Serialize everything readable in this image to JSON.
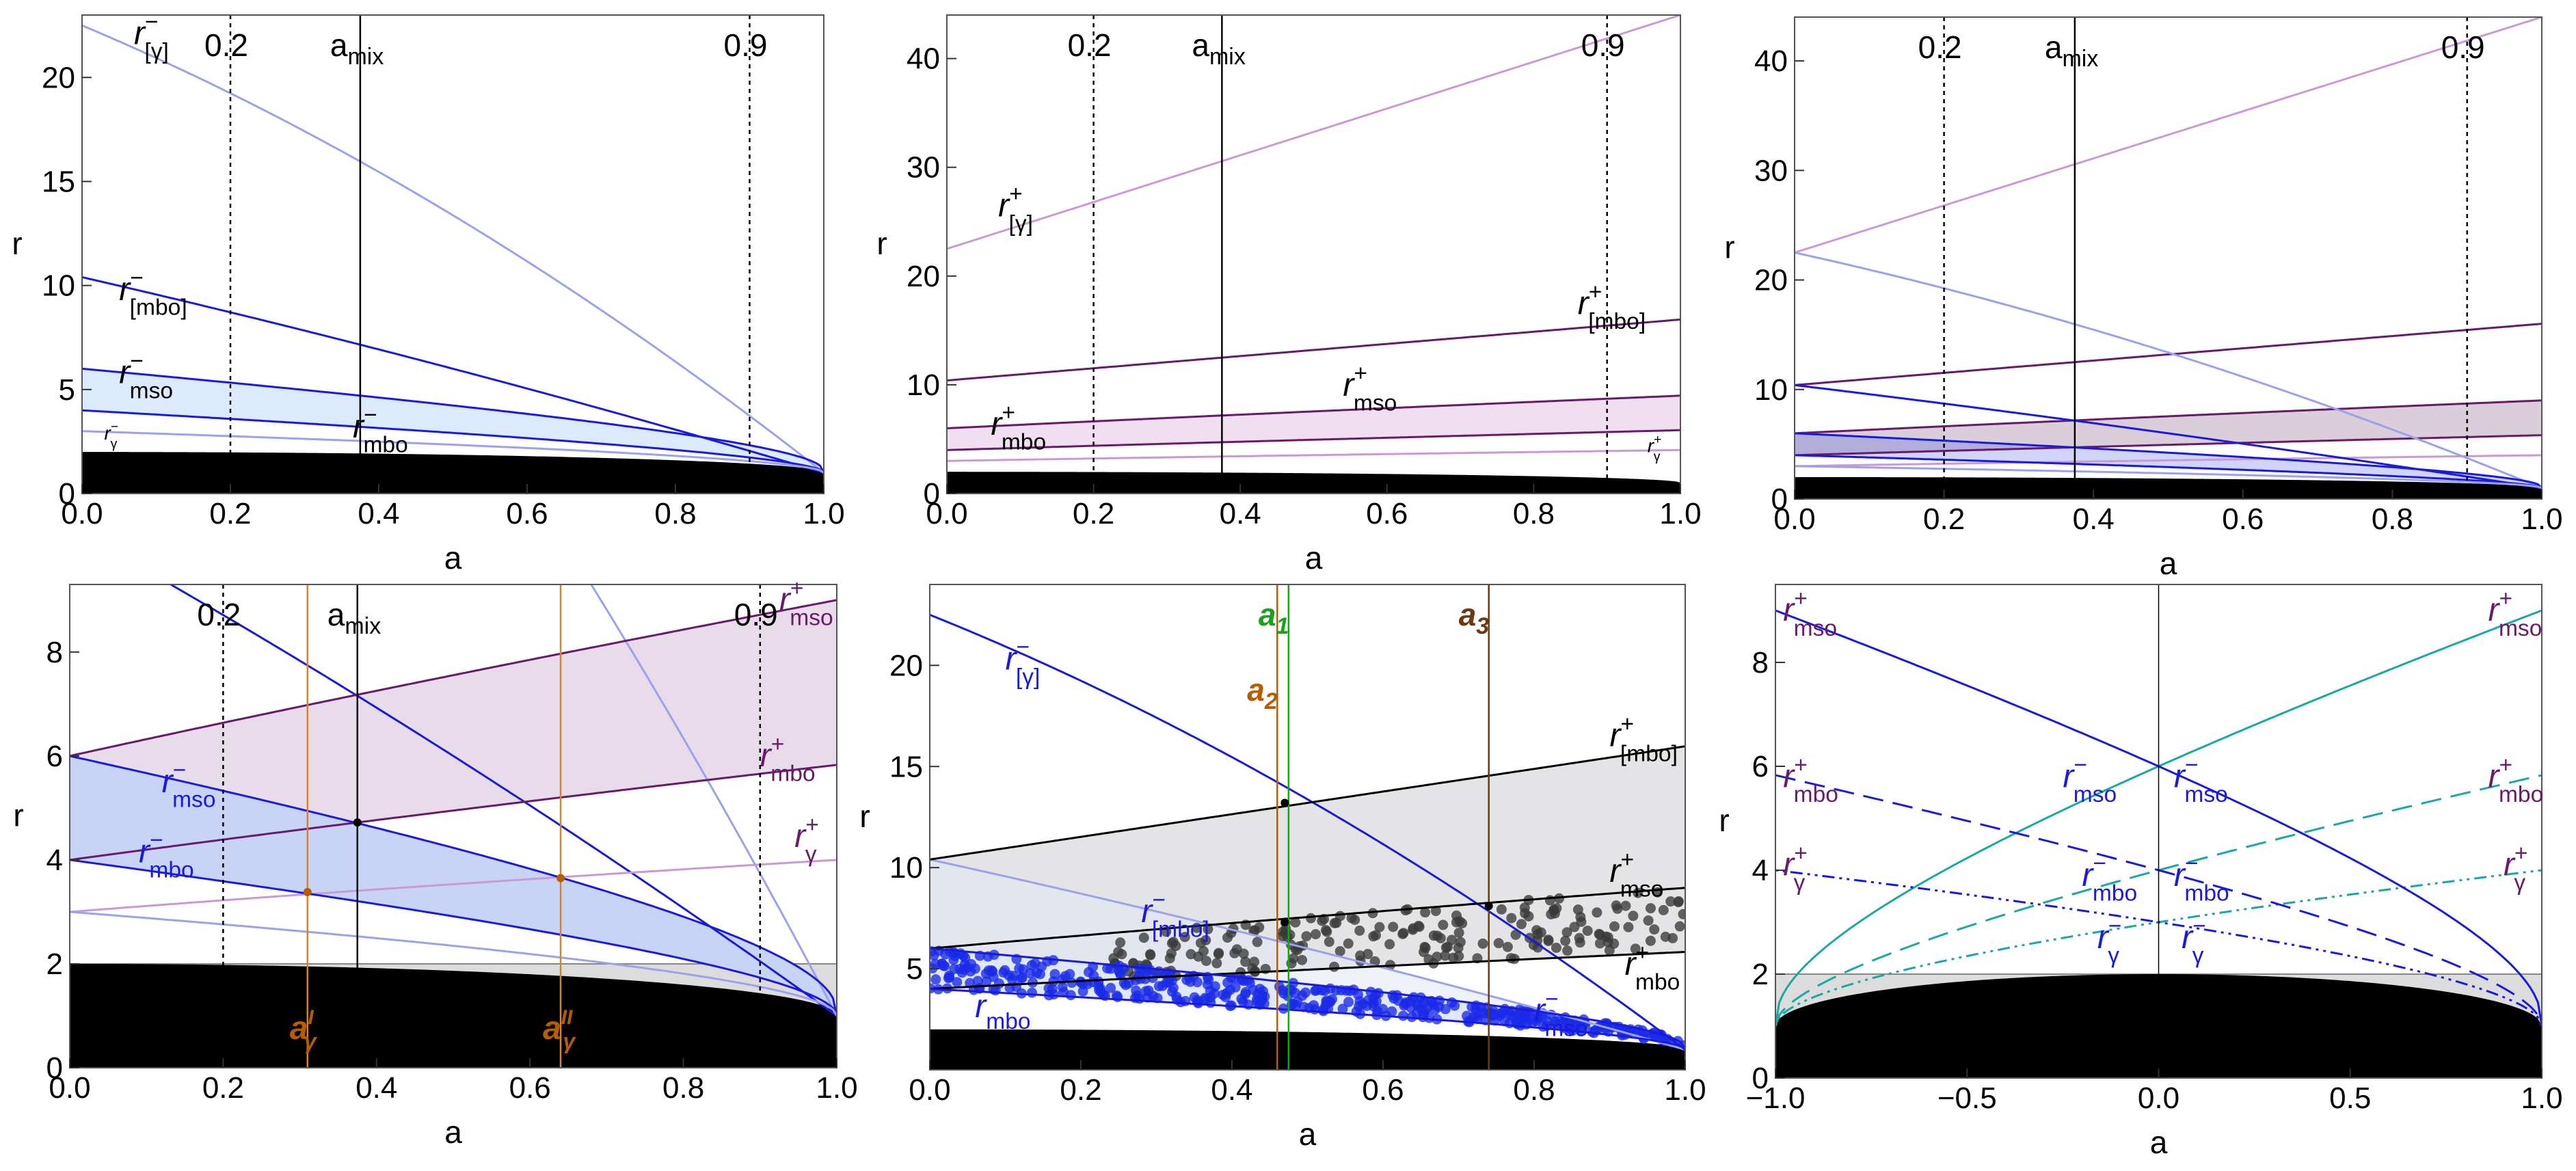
{
  "figure": {
    "panel_count": 6,
    "background": "#ffffff"
  },
  "colors": {
    "blue": "#1a1adf",
    "lightblue": "#9aa2ee",
    "purple": "#6a1a6a",
    "lightpurple": "#c99ad3",
    "orange": "#b85c00",
    "brown": "#6b3a12",
    "green": "#1aa31a",
    "teal": "#1aa9a2",
    "black": "#000000"
  },
  "chart_data": [
    {
      "type": "line",
      "panel": "top-left",
      "xlabel": "a",
      "ylabel": "r",
      "xlim": [
        0,
        1
      ],
      "ylim": [
        0,
        23
      ],
      "xticks": [
        0,
        0.2,
        0.4,
        0.6,
        0.8,
        1
      ],
      "xtick_labels": [
        "0.0",
        "0.2",
        "0.4",
        "0.6",
        "0.8",
        "1.0"
      ],
      "yticks": [
        0,
        5,
        10,
        15,
        20
      ],
      "ytick_labels": [
        "0",
        "5",
        "10",
        "15",
        "20"
      ],
      "vlines": [
        {
          "x": 0.2,
          "label": "0.2",
          "style": "dotted"
        },
        {
          "x": 0.375,
          "label": "a_mix",
          "style": "solid"
        },
        {
          "x": 0.9,
          "label": "0.9",
          "style": "dotted"
        }
      ],
      "series": [
        {
          "name": "r_[γ]^-",
          "kind": "gammaBar",
          "sign": -1,
          "color": "#9aa2ee"
        },
        {
          "name": "r_[mbo]^-",
          "kind": "mboBar",
          "sign": -1,
          "color": "#1a1adf"
        },
        {
          "name": "r_mso^-",
          "kind": "mso",
          "sign": -1,
          "color": "#1a1adf"
        },
        {
          "name": "r_mbo^-",
          "kind": "mbo",
          "sign": -1,
          "color": "#1a1adf"
        },
        {
          "name": "r_γ^-",
          "kind": "gamma",
          "sign": -1,
          "color": "#9aa2ee"
        }
      ],
      "bands": [
        {
          "from": "mbo",
          "to": "mso",
          "sign": -1,
          "color": "#dbeafc"
        }
      ],
      "labels": [
        {
          "text": "r",
          "sub": "[γ]",
          "sup": "−",
          "x": 0.07,
          "y": 21.6,
          "color": "#000"
        },
        {
          "text": "r",
          "sub": "[mbo]",
          "sup": "−",
          "x": 0.05,
          "y": 9.3,
          "color": "#000"
        },
        {
          "text": "r",
          "sub": "mso",
          "sup": "−",
          "x": 0.05,
          "y": 5.3,
          "color": "#000"
        },
        {
          "text": "r",
          "sub": "mbo",
          "sup": "−",
          "x": 0.365,
          "y": 2.7,
          "color": "#000"
        },
        {
          "text": "r",
          "sub": "γ",
          "sup": "−",
          "x": 0.03,
          "y": 2.6,
          "color": "#000",
          "small": true
        }
      ]
    },
    {
      "type": "line",
      "panel": "top-middle",
      "xlabel": "a",
      "ylabel": "r",
      "xlim": [
        0,
        1
      ],
      "ylim": [
        0,
        44
      ],
      "xticks": [
        0,
        0.2,
        0.4,
        0.6,
        0.8,
        1
      ],
      "xtick_labels": [
        "0.0",
        "0.2",
        "0.4",
        "0.6",
        "0.8",
        "1.0"
      ],
      "yticks": [
        0,
        10,
        20,
        30,
        40
      ],
      "ytick_labels": [
        "0",
        "10",
        "20",
        "30",
        "40"
      ],
      "vlines": [
        {
          "x": 0.2,
          "label": "0.2",
          "style": "dotted"
        },
        {
          "x": 0.375,
          "label": "a_mix",
          "style": "solid"
        },
        {
          "x": 0.9,
          "label": "0.9",
          "style": "dotted"
        }
      ],
      "series": [
        {
          "name": "r_[γ]^+",
          "kind": "gammaBar",
          "sign": 1,
          "color": "#c99ad3"
        },
        {
          "name": "r_[mbo]^+",
          "kind": "mboBar",
          "sign": 1,
          "color": "#6a1a6a"
        },
        {
          "name": "r_mso^+",
          "kind": "mso",
          "sign": 1,
          "color": "#6a1a6a"
        },
        {
          "name": "r_mbo^+",
          "kind": "mbo",
          "sign": 1,
          "color": "#6a1a6a"
        },
        {
          "name": "r_γ^+",
          "kind": "gamma",
          "sign": 1,
          "color": "#c99ad3"
        }
      ],
      "bands": [
        {
          "from": "mbo",
          "to": "mso",
          "sign": 1,
          "color": "#f0dff0"
        }
      ],
      "labels": [
        {
          "text": "r",
          "sub": "[γ]",
          "sup": "+",
          "x": 0.07,
          "y": 25.5,
          "color": "#000"
        },
        {
          "text": "r",
          "sub": "[mbo]",
          "sup": "+",
          "x": 0.86,
          "y": 16.5,
          "color": "#000"
        },
        {
          "text": "r",
          "sub": "mso",
          "sup": "+",
          "x": 0.54,
          "y": 9.0,
          "color": "#000"
        },
        {
          "text": "r",
          "sub": "mbo",
          "sup": "+",
          "x": 0.06,
          "y": 5.4,
          "color": "#000"
        },
        {
          "text": "r",
          "sub": "γ",
          "sup": "+",
          "x": 0.955,
          "y": 3.8,
          "color": "#000",
          "small": true
        }
      ]
    },
    {
      "type": "line",
      "panel": "top-right",
      "xlabel": "a",
      "ylabel": "r",
      "xlim": [
        0,
        1
      ],
      "ylim": [
        0,
        44
      ],
      "xticks": [
        0,
        0.2,
        0.4,
        0.6,
        0.8,
        1
      ],
      "xtick_labels": [
        "0.0",
        "0.2",
        "0.4",
        "0.6",
        "0.8",
        "1.0"
      ],
      "yticks": [
        0,
        10,
        20,
        30,
        40
      ],
      "ytick_labels": [
        "0",
        "10",
        "20",
        "30",
        "40"
      ],
      "vlines": [
        {
          "x": 0.2,
          "label": "0.2",
          "style": "dotted"
        },
        {
          "x": 0.375,
          "label": "a_mix",
          "style": "solid"
        },
        {
          "x": 0.9,
          "label": "0.9",
          "style": "dotted"
        }
      ],
      "series": [
        {
          "name": "r_[γ]^+",
          "kind": "gammaBar",
          "sign": 1,
          "color": "#c99ad3"
        },
        {
          "name": "r_[mbo]^+",
          "kind": "mboBar",
          "sign": 1,
          "color": "#6a1a6a"
        },
        {
          "name": "r_mso^+",
          "kind": "mso",
          "sign": 1,
          "color": "#6a1a6a"
        },
        {
          "name": "r_mbo^+",
          "kind": "mbo",
          "sign": 1,
          "color": "#6a1a6a"
        },
        {
          "name": "r_γ^+",
          "kind": "gamma",
          "sign": 1,
          "color": "#c99ad3"
        },
        {
          "name": "r_[γ]^-",
          "kind": "gammaBar",
          "sign": -1,
          "color": "#9aa2ee"
        },
        {
          "name": "r_[mbo]^-",
          "kind": "mboBar",
          "sign": -1,
          "color": "#1a1adf"
        },
        {
          "name": "r_mso^-",
          "kind": "mso",
          "sign": -1,
          "color": "#1a1adf"
        },
        {
          "name": "r_mbo^-",
          "kind": "mbo",
          "sign": -1,
          "color": "#1a1adf"
        },
        {
          "name": "r_γ^-",
          "kind": "gamma",
          "sign": -1,
          "color": "#9aa2ee"
        }
      ],
      "bands": [
        {
          "from": "mbo",
          "to": "mso",
          "sign": 1,
          "color": "#6a3a6a",
          "opacity": 0.25
        },
        {
          "from": "mbo",
          "to": "mso",
          "sign": -1,
          "color": "#2a3ad8",
          "opacity": 0.22
        }
      ],
      "labels": []
    },
    {
      "type": "line",
      "panel": "bottom-left",
      "xlabel": "a",
      "ylabel": "r",
      "xlim": [
        0,
        1
      ],
      "ylim": [
        0,
        9.3
      ],
      "xticks": [
        0,
        0.2,
        0.4,
        0.6,
        0.8,
        1
      ],
      "xtick_labels": [
        "0.0",
        "0.2",
        "0.4",
        "0.6",
        "0.8",
        "1.0"
      ],
      "yticks": [
        0,
        2,
        4,
        6,
        8
      ],
      "ytick_labels": [
        "0",
        "2",
        "4",
        "6",
        "8"
      ],
      "hline": 2,
      "vlines": [
        {
          "x": 0.2,
          "label": "0.2",
          "style": "dotted"
        },
        {
          "x": 0.375,
          "label": "a_mix",
          "style": "solid"
        },
        {
          "x": 0.9,
          "label": "0.9",
          "style": "dotted"
        }
      ],
      "orange_lines": [
        {
          "x": 0.31,
          "label": "a",
          "sub": "γ",
          "sup": "I"
        },
        {
          "x": 0.64,
          "label": "a",
          "sub": "γ",
          "sup": "II"
        }
      ],
      "points": [
        {
          "x": 0.375,
          "y": 4.72,
          "color": "#000"
        },
        {
          "x": 0.31,
          "y": 3.38,
          "color": "#b85c00"
        },
        {
          "x": 0.64,
          "y": 3.65,
          "color": "#b85c00"
        }
      ],
      "series": [
        {
          "name": "r_[γ]^-",
          "kind": "gammaBar",
          "sign": -1,
          "color": "#9aa2ee"
        },
        {
          "name": "r_[mbo]^-",
          "kind": "mboBar",
          "sign": -1,
          "color": "#1a1adf"
        },
        {
          "name": "r_mso^+",
          "kind": "mso",
          "sign": 1,
          "color": "#6a1a6a"
        },
        {
          "name": "r_mbo^+",
          "kind": "mbo",
          "sign": 1,
          "color": "#6a1a6a"
        },
        {
          "name": "r_γ^+",
          "kind": "gamma",
          "sign": 1,
          "color": "#c99ad3"
        },
        {
          "name": "r_mso^-",
          "kind": "mso",
          "sign": -1,
          "color": "#1a1adf"
        },
        {
          "name": "r_mbo^-",
          "kind": "mbo",
          "sign": -1,
          "color": "#1a1adf"
        },
        {
          "name": "r_γ^-",
          "kind": "gamma",
          "sign": -1,
          "color": "#9aa2ee"
        }
      ],
      "bands": [
        {
          "from": "mbo",
          "to": "mso",
          "sign": 1,
          "color": "#e8dcea"
        },
        {
          "from": "mbo",
          "to": "mso",
          "sign": -1,
          "color": "#c8d4f6"
        }
      ],
      "labels": [
        {
          "text": "r",
          "sub": "mso",
          "sup": "+",
          "x": 0.925,
          "y": 8.8,
          "color": "#6a1a6a"
        },
        {
          "text": "r",
          "sub": "mbo",
          "sup": "+",
          "x": 0.9,
          "y": 5.8,
          "color": "#6a1a6a"
        },
        {
          "text": "r",
          "sub": "γ",
          "sup": "+",
          "x": 0.945,
          "y": 4.25,
          "color": "#6a1a6a"
        },
        {
          "text": "r",
          "sub": "mso",
          "sup": "−",
          "x": 0.12,
          "y": 5.3,
          "color": "#1a1adf"
        },
        {
          "text": "r",
          "sub": "mbo",
          "sup": "−",
          "x": 0.09,
          "y": 3.95,
          "color": "#1a1adf"
        }
      ]
    },
    {
      "type": "scatter",
      "panel": "bottom-middle",
      "xlabel": "a",
      "ylabel": "r",
      "xlim": [
        0,
        1
      ],
      "ylim": [
        0,
        24
      ],
      "xticks": [
        0,
        0.2,
        0.4,
        0.6,
        0.8,
        1
      ],
      "xtick_labels": [
        "0.0",
        "0.2",
        "0.4",
        "0.6",
        "0.8",
        "1.0"
      ],
      "yticks": [
        5,
        10,
        15,
        20
      ],
      "ytick_labels": [
        "5",
        "10",
        "15",
        "20"
      ],
      "vlines": [
        {
          "x": 0.46,
          "label": "a",
          "sub": "2",
          "color": "#b85c00"
        },
        {
          "x": 0.475,
          "label": "a",
          "sub": "1",
          "color": "#1aa31a"
        },
        {
          "x": 0.74,
          "label": "a",
          "sub": "3",
          "color": "#6b3a12"
        }
      ],
      "points": [
        {
          "x": 0.47,
          "y": 13.2,
          "color": "#000"
        },
        {
          "x": 0.47,
          "y": 7.3,
          "color": "#000"
        },
        {
          "x": 0.74,
          "y": 8.1,
          "color": "#000"
        }
      ],
      "series": [
        {
          "name": "r_[γ]^-",
          "kind": "gammaBar",
          "sign": -1,
          "color": "#1a1adf"
        },
        {
          "name": "r_[mbo]^-",
          "kind": "mboBar",
          "sign": -1,
          "color": "#9aa2ee"
        },
        {
          "name": "r_[mbo]^+",
          "kind": "mboBar",
          "sign": 1,
          "color": "#000"
        },
        {
          "name": "r_mso^+",
          "kind": "mso",
          "sign": 1,
          "color": "#000"
        },
        {
          "name": "r_mbo^+",
          "kind": "mbo",
          "sign": 1,
          "color": "#000"
        },
        {
          "name": "r_mso^-",
          "kind": "mso",
          "sign": -1,
          "color": "#1a1adf"
        },
        {
          "name": "r_mbo^-",
          "kind": "mbo",
          "sign": -1,
          "color": "#1a1adf"
        }
      ],
      "bands": [
        {
          "from": "mbo",
          "to": "mboBar",
          "sign": 1,
          "color": "#e4e4e6"
        },
        {
          "from": "mbo",
          "to": "mso",
          "sign": -1,
          "color": "#d8e8fb"
        },
        {
          "from": "mbo",
          "to": "mboBar",
          "sign": -1,
          "color": "#e4e8f4",
          "opacity": 0.6
        }
      ],
      "scatter": [
        {
          "name": "gray-cloud",
          "count": 260,
          "region": "plus",
          "color": "#3a3a3a"
        },
        {
          "name": "blue-cloud",
          "count": 420,
          "region": "minus",
          "color": "#1a2ae8"
        }
      ],
      "labels": [
        {
          "text": "r",
          "sub": "[γ]",
          "sup": "−",
          "x": 0.1,
          "y": 19.8,
          "color": "#1a1adf"
        },
        {
          "text": "r",
          "sub": "[mbo]",
          "sup": "+",
          "x": 0.9,
          "y": 16.0,
          "color": "#000"
        },
        {
          "text": "r",
          "sub": "mso",
          "sup": "+",
          "x": 0.9,
          "y": 9.3,
          "color": "#000"
        },
        {
          "text": "r",
          "sub": "[mbo]",
          "sup": "−",
          "x": 0.28,
          "y": 7.3,
          "color": "#1a1adf"
        },
        {
          "text": "r",
          "sub": "mbo",
          "sup": "+",
          "x": 0.92,
          "y": 4.7,
          "color": "#000"
        },
        {
          "text": "r",
          "sub": "mbo",
          "sup": "",
          "x": 0.06,
          "y": 2.6,
          "color": "#1a1adf"
        },
        {
          "text": "r",
          "sub": "mso",
          "sup": "−",
          "x": 0.8,
          "y": 2.4,
          "color": "#1a1adf"
        }
      ]
    },
    {
      "type": "line",
      "panel": "bottom-right",
      "xlabel": "a",
      "ylabel": "r",
      "xlim": [
        -1,
        1
      ],
      "ylim": [
        0,
        9.5
      ],
      "xticks": [
        -1,
        -0.5,
        0,
        0.5,
        1
      ],
      "xtick_labels": [
        "−1.0",
        "−0.5",
        "0.0",
        "0.5",
        "1.0"
      ],
      "yticks": [
        0,
        2,
        4,
        6,
        8
      ],
      "ytick_labels": [
        "0",
        "2",
        "4",
        "6",
        "8"
      ],
      "hline": 2,
      "vlines": [
        {
          "x": 0,
          "label": "",
          "style": "thin"
        }
      ],
      "series": [
        {
          "name": "r_mso^+",
          "kind": "mso",
          "sign": 1,
          "color": "#1aa9a2",
          "dash": "solid"
        },
        {
          "name": "r_mbo^+",
          "kind": "mbo",
          "sign": 1,
          "color": "#1aa9a2",
          "dash": "dashed"
        },
        {
          "name": "r_γ^+",
          "kind": "gamma",
          "sign": 1,
          "color": "#1aa9a2",
          "dash": "dotdash"
        },
        {
          "name": "r_mso^-",
          "kind": "mso",
          "sign": -1,
          "color": "#1a1adf",
          "dash": "solid"
        },
        {
          "name": "r_mbo^-",
          "kind": "mbo",
          "sign": -1,
          "color": "#1a1adf",
          "dash": "dashed"
        },
        {
          "name": "r_γ^-",
          "kind": "gamma",
          "sign": -1,
          "color": "#1a1adf",
          "dash": "dotdash"
        }
      ],
      "labels": [
        {
          "text": "r",
          "sub": "mso",
          "sup": "+",
          "x": -0.98,
          "y": 8.8,
          "color": "#6a1a6a"
        },
        {
          "text": "r",
          "sub": "mbo",
          "sup": "+",
          "x": -0.98,
          "y": 5.6,
          "color": "#6a1a6a"
        },
        {
          "text": "r",
          "sub": "γ",
          "sup": "+",
          "x": -0.98,
          "y": 3.9,
          "color": "#6a1a6a"
        },
        {
          "text": "r",
          "sub": "mso",
          "sup": "+",
          "x": 0.86,
          "y": 8.8,
          "color": "#6a1a6a"
        },
        {
          "text": "r",
          "sub": "mbo",
          "sup": "+",
          "x": 0.86,
          "y": 5.6,
          "color": "#6a1a6a"
        },
        {
          "text": "r",
          "sub": "γ",
          "sup": "+",
          "x": 0.9,
          "y": 3.9,
          "color": "#6a1a6a"
        },
        {
          "text": "r",
          "sub": "mso",
          "sup": "−",
          "x": -0.25,
          "y": 5.6,
          "color": "#1a1adf"
        },
        {
          "text": "r",
          "sub": "mso",
          "sup": "−",
          "x": 0.04,
          "y": 5.6,
          "color": "#1a1adf"
        },
        {
          "text": "r",
          "sub": "mbo",
          "sup": "−",
          "x": -0.2,
          "y": 3.7,
          "color": "#1a1adf"
        },
        {
          "text": "r",
          "sub": "mbo",
          "sup": "−",
          "x": 0.04,
          "y": 3.7,
          "color": "#1a1adf"
        },
        {
          "text": "r",
          "sub": "γ",
          "sup": "−",
          "x": -0.16,
          "y": 2.5,
          "color": "#1a1adf"
        },
        {
          "text": "r",
          "sub": "γ",
          "sup": "−",
          "x": 0.06,
          "y": 2.5,
          "color": "#1a1adf"
        }
      ]
    }
  ]
}
